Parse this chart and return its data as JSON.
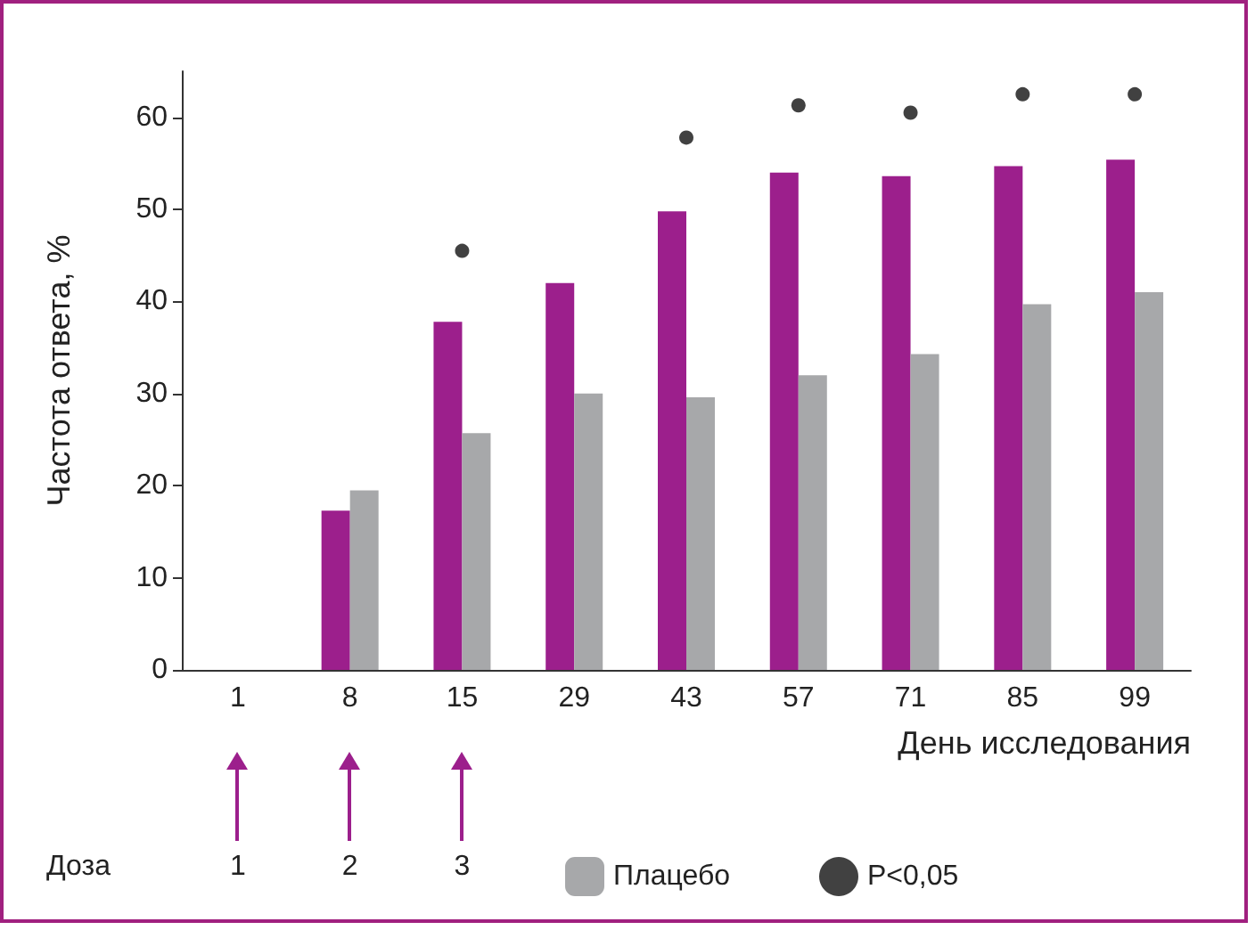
{
  "chart_data": {
    "type": "bar",
    "ylabel": "Частота ответа, %",
    "xlabel": "День исследования",
    "categories": [
      "1",
      "8",
      "15",
      "29",
      "43",
      "57",
      "71",
      "85",
      "99"
    ],
    "series": [
      {
        "color": "#9c1f8c",
        "values": [
          null,
          17.3,
          37.8,
          42,
          49.8,
          54,
          53.6,
          54.7,
          55.4
        ]
      },
      {
        "name": "Плацебо",
        "color": "#a7a8aa",
        "values": [
          null,
          19.5,
          25.7,
          30,
          29.6,
          32,
          34.3,
          39.7,
          41
        ]
      },
      {
        "name": "P<0,05",
        "type": "scatter",
        "marker": "circle",
        "color": "#111111",
        "x": [
          "15",
          "43",
          "57",
          "71",
          "85",
          "99"
        ],
        "values": [
          45.5,
          57.8,
          61.3,
          60.5,
          62.5,
          62.5
        ]
      }
    ],
    "ylim": [
      0,
      65
    ],
    "yticks": [
      0,
      10,
      20,
      30,
      40,
      50,
      60
    ],
    "grid": false,
    "legend": "bottom",
    "annotations": [
      "Доза",
      "1",
      "2",
      "3"
    ]
  }
}
